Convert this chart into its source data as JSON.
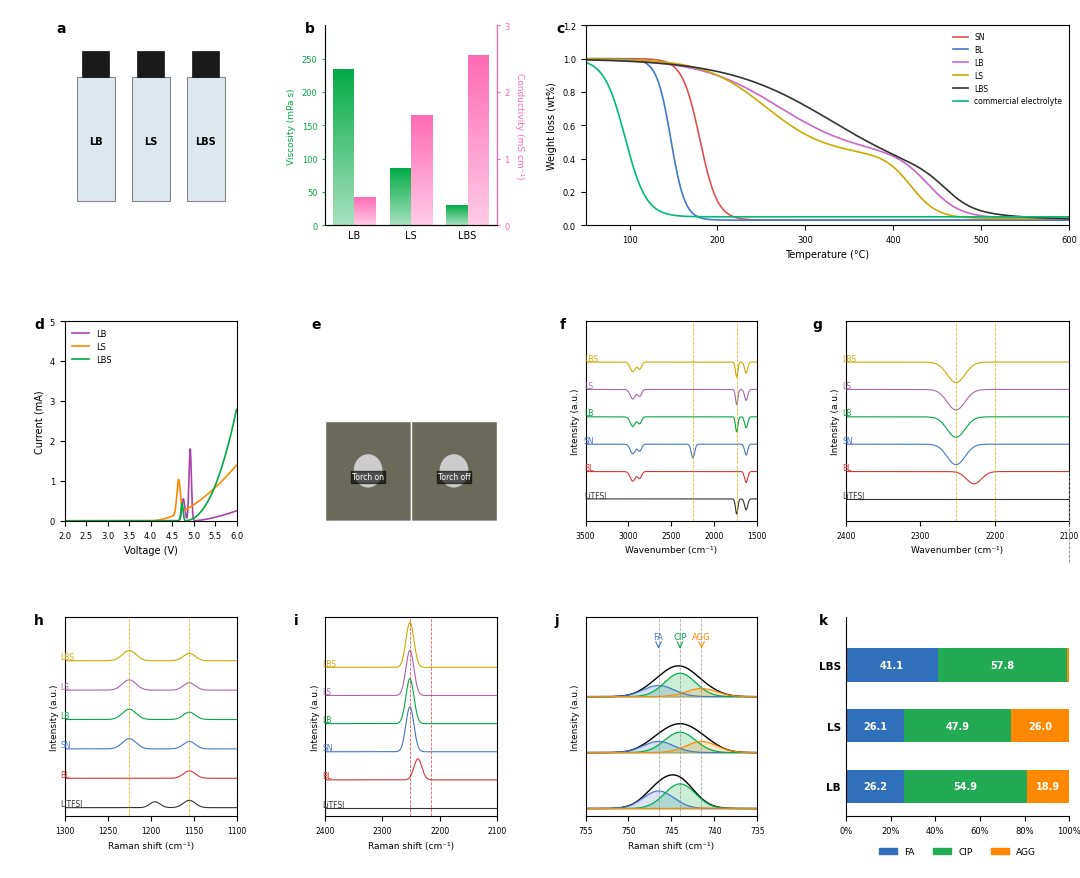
{
  "panel_labels": [
    "a",
    "b",
    "c",
    "d",
    "e",
    "f",
    "g",
    "h",
    "i",
    "j",
    "k"
  ],
  "b_categories": [
    "LB",
    "LS",
    "LBS"
  ],
  "b_viscosity": [
    235,
    86,
    30
  ],
  "b_conductivity": [
    0.43,
    1.65,
    2.55
  ],
  "b_visc_color": "#00aa44",
  "b_cond_color": "#ff69b4",
  "c_colors": {
    "SN": "#e05050",
    "BL": "#4477cc",
    "LB": "#cc66cc",
    "LS": "#ccaa00",
    "LBS": "#333333",
    "commercial electrolyte": "#00bb77"
  },
  "d_colors": {
    "LB": "#aa44aa",
    "LS": "#ff8800",
    "LBS": "#00aa44"
  },
  "k_data": {
    "LBS": {
      "FA": 41.1,
      "CIP": 57.8,
      "AGG": 1.1
    },
    "LS": {
      "FA": 26.1,
      "CIP": 47.9,
      "AGG": 26.0
    },
    "LB": {
      "FA": 26.2,
      "CIP": 54.9,
      "AGG": 18.9
    }
  },
  "k_colors": {
    "FA": "#3070bb",
    "CIP": "#22aa55",
    "AGG": "#ff8800"
  },
  "bg_color": "#ffffff",
  "text_color": "#000000"
}
